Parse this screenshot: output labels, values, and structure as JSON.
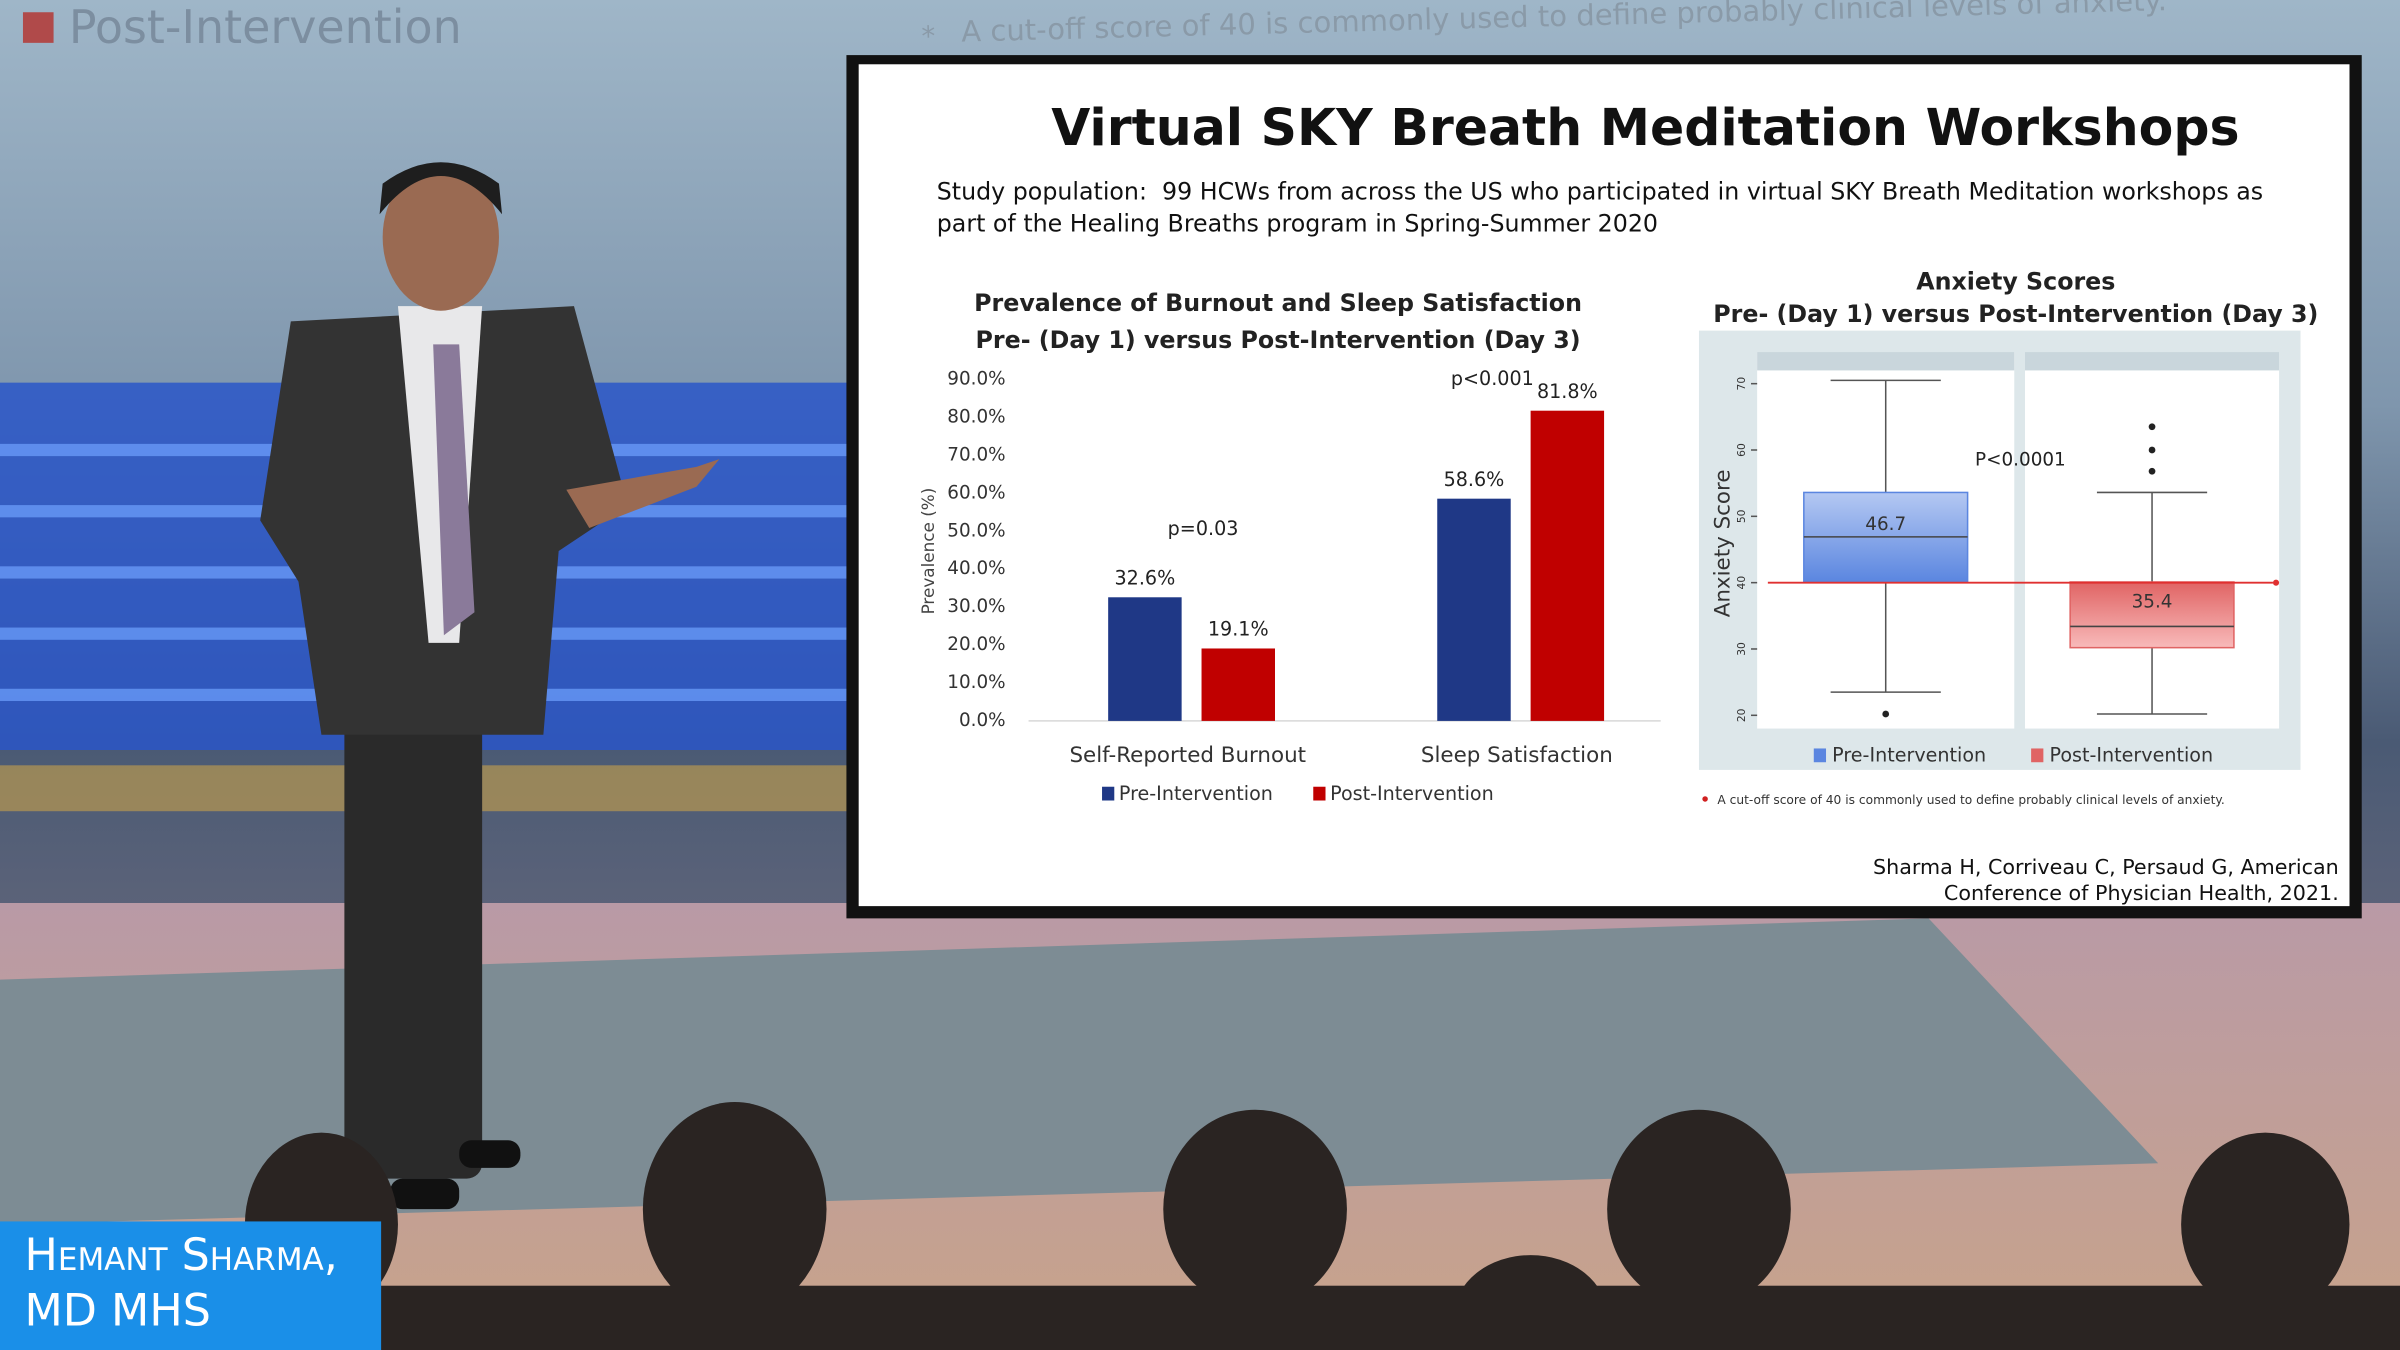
{
  "background": {
    "legend_fragment": "Post-Intervention",
    "footnote_fragment": "A cut-off score of 40 is commonly used to define probably clinical levels of anxiety."
  },
  "slide": {
    "title": "Virtual SKY Breath Meditation Workshops",
    "intro": [
      "Study population:  99 HCWs from across the US who participated in virtual SKY Breath Meditation workshops as",
      "part of the Healing Breaths program in Spring-Summer 2020"
    ],
    "citation": [
      "Sharma H, Corriveau C, Persaud G, American",
      "Conference of Physician Health, 2021."
    ]
  },
  "chart_data": [
    {
      "type": "bar",
      "title": "Prevalence of Burnout and Sleep Satisfaction",
      "subtitle": "Pre- (Day 1) versus Post-Intervention (Day 3)",
      "ylabel": "Prevalence (%)",
      "categories": [
        "Self-Reported Burnout",
        "Sleep Satisfaction"
      ],
      "series": [
        {
          "name": "Pre-Intervention",
          "color": "#1f3886",
          "values": [
            32.6,
            58.6
          ],
          "value_labels": [
            "32.6%",
            "58.6%"
          ]
        },
        {
          "name": "Post-Intervention",
          "color": "#c00000",
          "values": [
            19.1,
            81.8
          ],
          "value_labels": [
            "19.1%",
            "81.8%"
          ]
        }
      ],
      "annotations": [
        "p=0.03",
        "p<0.001"
      ],
      "ylim": [
        0,
        90
      ],
      "yticks": [
        {
          "value": 0,
          "label": "0.0%"
        },
        {
          "value": 10,
          "label": "10.0%"
        },
        {
          "value": 20,
          "label": "20.0%"
        },
        {
          "value": 30,
          "label": "30.0%"
        },
        {
          "value": 40,
          "label": "40.0%"
        },
        {
          "value": 50,
          "label": "50.0%"
        },
        {
          "value": 60,
          "label": "60.0%"
        },
        {
          "value": 70,
          "label": "70.0%"
        },
        {
          "value": 80,
          "label": "80.0%"
        },
        {
          "value": 90,
          "label": "90.0%"
        }
      ],
      "legend": "bottom"
    },
    {
      "type": "box",
      "title": "Anxiety Scores",
      "subtitle": "Pre- (Day 1) versus Post-Intervention (Day 3)",
      "ylabel": "Anxiety Score",
      "series": [
        {
          "name": "Pre-Intervention",
          "color": "#5b86e0",
          "light": "#b4c8f2",
          "whisker_low": 23.5,
          "q1": 40.1,
          "median": 46.9,
          "q3": 53.6,
          "whisker_high": 70.5,
          "mean": 46.7,
          "outliers": [
            20.2
          ]
        },
        {
          "name": "Post-Intervention",
          "color": "#e06464",
          "light": "#f8baba",
          "whisker_low": 20.2,
          "q1": 30.2,
          "median": 33.4,
          "q3": 40.1,
          "whisker_high": 53.6,
          "mean": 35.4,
          "outliers": [
            56.8,
            60,
            63.5
          ]
        }
      ],
      "cutoff": 40,
      "annotation": "P<0.0001",
      "footnote": "A cut-off score of 40 is commonly used to define probably clinical levels of anxiety.",
      "ylim": [
        18,
        72
      ],
      "yticks": [
        20,
        30,
        40,
        50,
        60,
        70
      ],
      "legend": "bottom"
    }
  ],
  "lower_third": {
    "name": "Hemant Sharma,",
    "credentials": "MD MHS"
  }
}
